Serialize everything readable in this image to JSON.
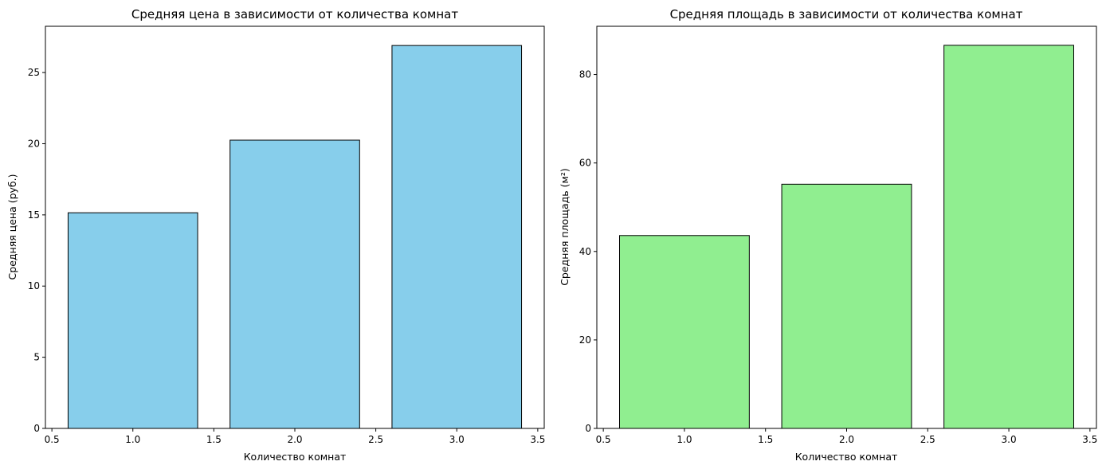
{
  "chart_data": [
    {
      "type": "bar",
      "title": "Средняя цена в зависимости от количества комнат",
      "xlabel": "Количество комнат",
      "ylabel": "Средняя цена (руб.)",
      "x": [
        1,
        2,
        3
      ],
      "values": [
        15.15,
        20.25,
        26.9
      ],
      "bar_width": 0.8,
      "xlim": [
        0.46,
        3.54
      ],
      "ylim": [
        0,
        28.25
      ],
      "xticks": [
        0.5,
        1.0,
        1.5,
        2.0,
        2.5,
        3.0,
        3.5
      ],
      "xtick_labels": [
        "0.5",
        "1.0",
        "1.5",
        "2.0",
        "2.5",
        "3.0",
        "3.5"
      ],
      "yticks": [
        0,
        5,
        10,
        15,
        20,
        25
      ],
      "ytick_labels": [
        "0",
        "5",
        "10",
        "15",
        "20",
        "25"
      ],
      "bar_color": "#87ceeb",
      "edge_color": "#000000",
      "grid": false,
      "legend": false
    },
    {
      "type": "bar",
      "title": "Средняя площадь в зависимости от количества комнат",
      "xlabel": "Количество комнат",
      "ylabel": "Средняя площадь (м²)",
      "x": [
        1,
        2,
        3
      ],
      "values": [
        43.6,
        55.2,
        86.6
      ],
      "bar_width": 0.8,
      "xlim": [
        0.46,
        3.54
      ],
      "ylim": [
        0,
        90.9
      ],
      "xticks": [
        0.5,
        1.0,
        1.5,
        2.0,
        2.5,
        3.0,
        3.5
      ],
      "xtick_labels": [
        "0.5",
        "1.0",
        "1.5",
        "2.0",
        "2.5",
        "3.0",
        "3.5"
      ],
      "yticks": [
        0,
        20,
        40,
        60,
        80
      ],
      "ytick_labels": [
        "0",
        "20",
        "40",
        "60",
        "80"
      ],
      "bar_color": "#90ee90",
      "edge_color": "#000000",
      "grid": false,
      "legend": false
    }
  ]
}
